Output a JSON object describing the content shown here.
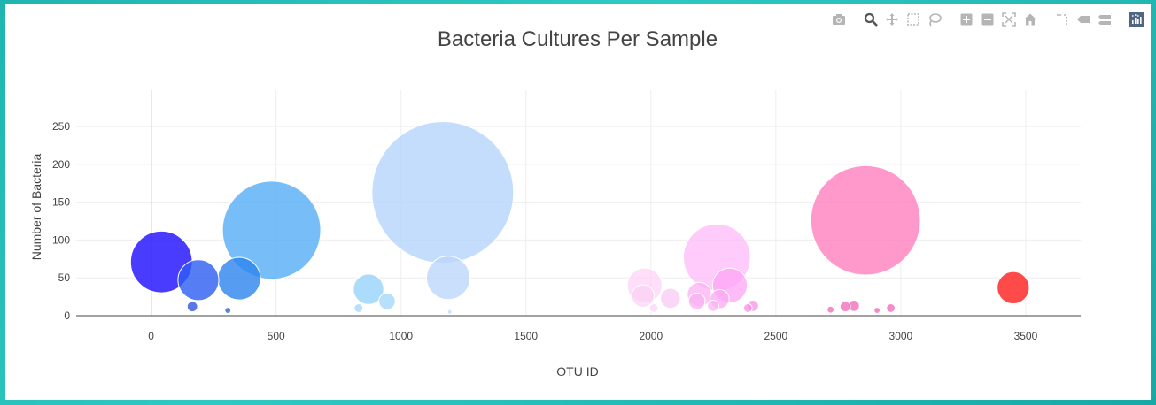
{
  "modebar": {
    "icons": [
      "camera-icon",
      "zoom-icon",
      "pan-icon",
      "box-select-icon",
      "lasso-icon",
      "zoom-in-icon",
      "zoom-out-icon",
      "autoscale-icon",
      "home-icon",
      "spike-lines-icon",
      "hover-closest-icon",
      "hover-compare-icon",
      "plotly-logo-icon"
    ],
    "icon_color": "#b5b5b5",
    "logo_color": "#506784"
  },
  "chart_data": {
    "type": "scatter",
    "title": "Bacteria Cultures Per Sample",
    "xlabel": "OTU ID",
    "ylabel": "Number of Bacteria",
    "xlim": [
      -300,
      3720
    ],
    "ylim": [
      0,
      298
    ],
    "xticks": [
      0,
      500,
      1000,
      1500,
      2000,
      2500,
      3000,
      3500
    ],
    "yticks": [
      0,
      50,
      100,
      150,
      200,
      250
    ],
    "grid": true,
    "legend": "none",
    "bubble_size": "proportional to y value",
    "series": [
      {
        "points": [
          {
            "x": 41,
            "y": 71,
            "color": "#2a1aff",
            "opacity": 0.85
          },
          {
            "x": 189,
            "y": 47,
            "color": "#2d5cf2",
            "opacity": 0.8
          },
          {
            "x": 352,
            "y": 49,
            "color": "#2c84ee",
            "opacity": 0.8
          },
          {
            "x": 482,
            "y": 113,
            "color": "#4aa8f7",
            "opacity": 0.75
          },
          {
            "x": 165,
            "y": 12,
            "color": "#3355dd",
            "opacity": 0.8
          },
          {
            "x": 307,
            "y": 7,
            "color": "#3366cc",
            "opacity": 0.8
          },
          {
            "x": 870,
            "y": 35,
            "color": "#8fd0fb",
            "opacity": 0.75
          },
          {
            "x": 944,
            "y": 19,
            "color": "#9fd6fb",
            "opacity": 0.75
          },
          {
            "x": 830,
            "y": 10,
            "color": "#a0d5fb",
            "opacity": 0.75
          },
          {
            "x": 1167,
            "y": 163,
            "color": "#b5d5fc",
            "opacity": 0.8
          },
          {
            "x": 1189,
            "y": 50,
            "color": "#bcd7fb",
            "opacity": 0.8
          },
          {
            "x": 1195,
            "y": 5,
            "color": "#c4dcfb",
            "opacity": 0.8
          },
          {
            "x": 1975,
            "y": 40,
            "color": "#fdd0f5",
            "opacity": 0.7
          },
          {
            "x": 1968,
            "y": 26,
            "color": "#fbd1f5",
            "opacity": 0.7
          },
          {
            "x": 2078,
            "y": 23,
            "color": "#fac6f4",
            "opacity": 0.7
          },
          {
            "x": 2012,
            "y": 10,
            "color": "#fbd1f5",
            "opacity": 0.7
          },
          {
            "x": 2264,
            "y": 77,
            "color": "#fdb9f8",
            "opacity": 0.75
          },
          {
            "x": 2316,
            "y": 40,
            "color": "#fda4f5",
            "opacity": 0.75
          },
          {
            "x": 2194,
            "y": 28,
            "color": "#fbb2f3",
            "opacity": 0.75
          },
          {
            "x": 2275,
            "y": 22,
            "color": "#fba8f1",
            "opacity": 0.75
          },
          {
            "x": 2184,
            "y": 19,
            "color": "#fab0f1",
            "opacity": 0.75
          },
          {
            "x": 2249,
            "y": 13,
            "color": "#fbb3f1",
            "opacity": 0.75
          },
          {
            "x": 2408,
            "y": 13,
            "color": "#f78fe3",
            "opacity": 0.75
          },
          {
            "x": 2388,
            "y": 10,
            "color": "#f78fe3",
            "opacity": 0.75
          },
          {
            "x": 2859,
            "y": 126,
            "color": "#ff7fbe",
            "opacity": 0.8
          },
          {
            "x": 2812,
            "y": 13,
            "color": "#f46ebc",
            "opacity": 0.8
          },
          {
            "x": 2778,
            "y": 12,
            "color": "#f46ebc",
            "opacity": 0.8
          },
          {
            "x": 2960,
            "y": 10,
            "color": "#f46ebc",
            "opacity": 0.8
          },
          {
            "x": 2905,
            "y": 7,
            "color": "#f46ebc",
            "opacity": 0.8
          },
          {
            "x": 2719,
            "y": 8,
            "color": "#f46ebc",
            "opacity": 0.8
          },
          {
            "x": 3450,
            "y": 37,
            "color": "#ff2a2a",
            "opacity": 0.85
          }
        ]
      }
    ]
  }
}
